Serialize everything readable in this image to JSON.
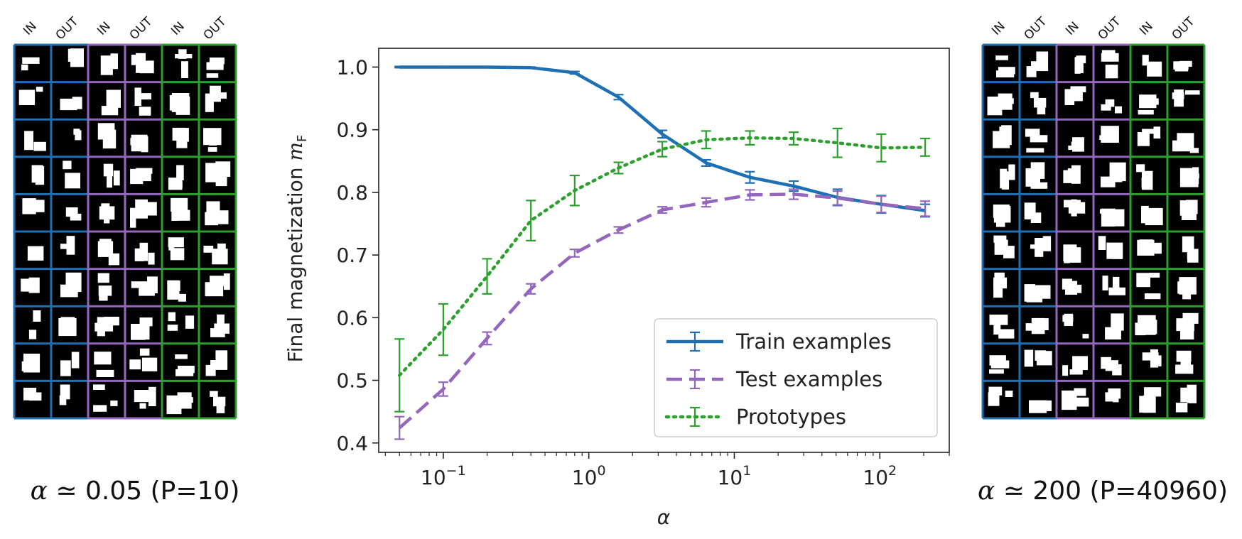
{
  "left_panel": {
    "column_labels": [
      "IN",
      "OUT",
      "IN",
      "OUT",
      "IN",
      "OUT"
    ],
    "caption_symbol": "α",
    "caption_rest": " ≃ 0.05 (P=10)",
    "colors": {
      "train": "#1f6fb4",
      "test": "#9467bd",
      "prototype": "#2ca02c"
    }
  },
  "right_panel": {
    "column_labels": [
      "IN",
      "OUT",
      "IN",
      "OUT",
      "IN",
      "OUT"
    ],
    "caption_symbol": "α",
    "caption_rest": " ≃ 200 (P=40960)",
    "colors": {
      "train": "#1f6fb4",
      "test": "#9467bd",
      "prototype": "#2ca02c"
    }
  },
  "chart_data": {
    "type": "line",
    "xscale": "log",
    "xlabel": "α",
    "ylabel_prefix": "Final magnetization ",
    "ylabel_symbol": "m",
    "ylabel_sub": "F",
    "xlim": [
      0.036,
      300
    ],
    "ylim": [
      0.385,
      1.03
    ],
    "x_tick_values": [
      0.1,
      1,
      10,
      100
    ],
    "x_tick_labels": [
      {
        "base": "10",
        "exp": "−1"
      },
      {
        "base": "10",
        "exp": "0"
      },
      {
        "base": "10",
        "exp": "1"
      },
      {
        "base": "10",
        "exp": "2"
      }
    ],
    "y_tick_values": [
      0.4,
      0.5,
      0.6,
      0.7,
      0.8,
      0.9,
      1.0
    ],
    "y_tick_labels": [
      "0.4",
      "0.5",
      "0.6",
      "0.7",
      "0.8",
      "0.9",
      "1.0"
    ],
    "legend_position": "lower-right",
    "series": [
      {
        "name": "Train examples",
        "color": "#1f6fb4",
        "linestyle": "solid",
        "x": [
          0.05,
          0.1,
          0.2,
          0.4,
          0.8,
          1.6,
          3.2,
          6.4,
          12.8,
          25.6,
          51.2,
          102.4,
          204.8
        ],
        "y": [
          1.0,
          1.0,
          1.0,
          0.999,
          0.991,
          0.952,
          0.893,
          0.847,
          0.824,
          0.81,
          0.792,
          0.781,
          0.771
        ],
        "err": [
          0.001,
          0.001,
          0.001,
          0.001,
          0.002,
          0.004,
          0.006,
          0.005,
          0.009,
          0.008,
          0.013,
          0.014,
          0.01
        ]
      },
      {
        "name": "Test examples",
        "color": "#9467bd",
        "linestyle": "dashed",
        "x": [
          0.05,
          0.1,
          0.2,
          0.4,
          0.8,
          1.6,
          3.2,
          6.4,
          12.8,
          25.6,
          51.2,
          102.4,
          204.8
        ],
        "y": [
          0.424,
          0.486,
          0.567,
          0.646,
          0.703,
          0.74,
          0.772,
          0.784,
          0.796,
          0.797,
          0.791,
          0.781,
          0.774
        ],
        "err": [
          0.018,
          0.011,
          0.01,
          0.008,
          0.006,
          0.005,
          0.005,
          0.007,
          0.008,
          0.008,
          0.011,
          0.013,
          0.012
        ]
      },
      {
        "name": "Prototypes",
        "color": "#2ca02c",
        "linestyle": "dotted",
        "x": [
          0.05,
          0.1,
          0.2,
          0.4,
          0.8,
          1.6,
          3.2,
          6.4,
          12.8,
          25.6,
          51.2,
          102.4,
          204.8
        ],
        "y": [
          0.508,
          0.581,
          0.666,
          0.755,
          0.803,
          0.839,
          0.869,
          0.884,
          0.887,
          0.886,
          0.879,
          0.871,
          0.872
        ],
        "err": [
          0.058,
          0.041,
          0.028,
          0.032,
          0.024,
          0.009,
          0.012,
          0.014,
          0.011,
          0.01,
          0.023,
          0.022,
          0.014
        ]
      }
    ]
  }
}
